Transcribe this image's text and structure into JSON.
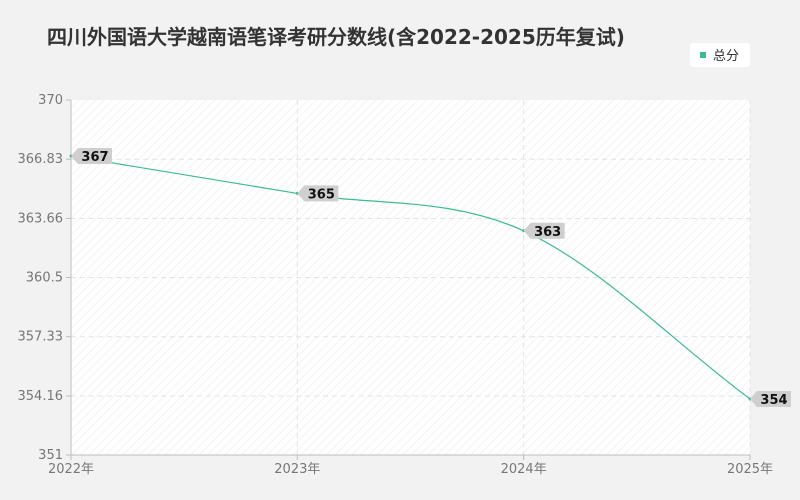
{
  "chart_data": {
    "type": "line",
    "title": "四川外国语大学越南语笔译考研分数线(含2022-2025历年复试)",
    "categories": [
      "2022年",
      "2023年",
      "2024年",
      "2025年"
    ],
    "series": [
      {
        "name": "总分",
        "values": [
          367,
          365,
          363,
          354
        ],
        "labels": [
          "367",
          "365",
          "363",
          "354"
        ]
      }
    ],
    "y_ticks": [
      "370",
      "366.83",
      "363.66",
      "360.5",
      "357.33",
      "354.16",
      "351"
    ],
    "ylim": [
      351,
      370
    ],
    "grid": true,
    "legend_position": "top-right",
    "colors": {
      "line": "#3dbb8f",
      "label_bg": "#cfcfcf",
      "axis": "#bdbdbd",
      "grid": "#e4e4e4"
    }
  }
}
